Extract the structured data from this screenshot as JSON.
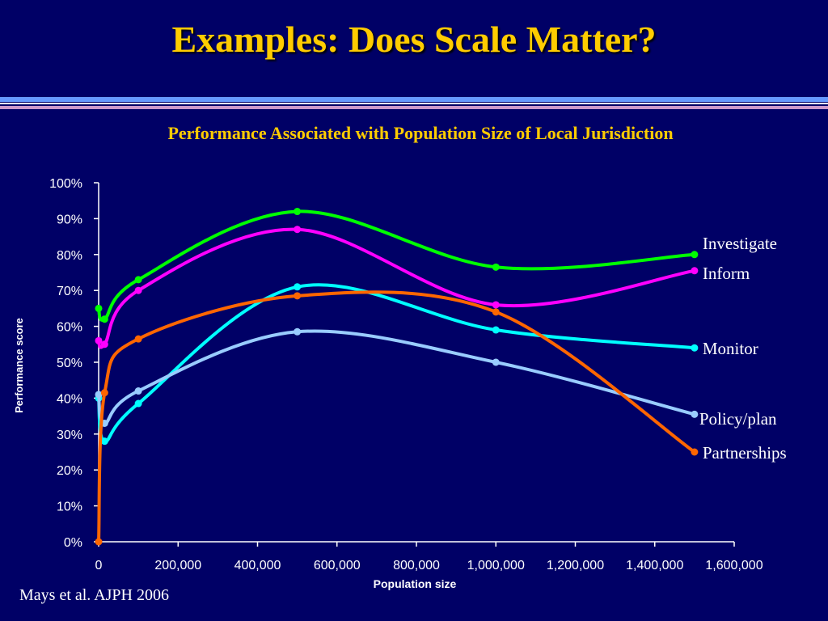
{
  "slide": {
    "title": "Examples: Does Scale Matter?",
    "citation": "Mays et al.  AJPH 2006"
  },
  "colors": {
    "background": "#000066",
    "title": "#FFCC00",
    "text": "#FFFFFF",
    "axis": "#FFFFFF"
  },
  "chart_data": {
    "type": "line",
    "title": "Performance Associated with Population Size of Local Jurisdiction",
    "xlabel": "Population size",
    "ylabel": "Performance score",
    "xlim": [
      0,
      1600000
    ],
    "ylim": [
      0,
      1
    ],
    "x_ticks": [
      0,
      200000,
      400000,
      600000,
      800000,
      1000000,
      1200000,
      1400000,
      1600000
    ],
    "x_tick_labels": [
      "0",
      "200,000",
      "400,000",
      "600,000",
      "800,000",
      "1,000,000",
      "1,200,000",
      "1,400,000",
      "1,600,000"
    ],
    "y_ticks": [
      0,
      0.1,
      0.2,
      0.3,
      0.4,
      0.5,
      0.6,
      0.7,
      0.8,
      0.9,
      1.0
    ],
    "y_tick_labels": [
      "0%",
      "10%",
      "20%",
      "30%",
      "40%",
      "50%",
      "60%",
      "70%",
      "80%",
      "90%",
      "100%"
    ],
    "grid": false,
    "legend": "direct labels at right end of lines",
    "x": [
      0,
      15000,
      100000,
      500000,
      1000000,
      1500000
    ],
    "series": [
      {
        "name": "Investigate",
        "color": "#00FF00",
        "values": [
          0.65,
          0.62,
          0.73,
          0.92,
          0.765,
          0.8
        ]
      },
      {
        "name": "Inform",
        "color": "#FF00FF",
        "values": [
          0.56,
          0.55,
          0.7,
          0.87,
          0.66,
          0.755
        ]
      },
      {
        "name": "Monitor",
        "color": "#00FFFF",
        "values": [
          0.4,
          0.28,
          0.385,
          0.71,
          0.59,
          0.54
        ]
      },
      {
        "name": "Policy/plan",
        "color": "#99CCFF",
        "values": [
          0.41,
          0.33,
          0.42,
          0.585,
          0.5,
          0.355
        ]
      },
      {
        "name": "Partnerships",
        "color": "#FF6600",
        "values": [
          0.0,
          0.415,
          0.565,
          0.685,
          0.64,
          0.25
        ]
      }
    ]
  }
}
